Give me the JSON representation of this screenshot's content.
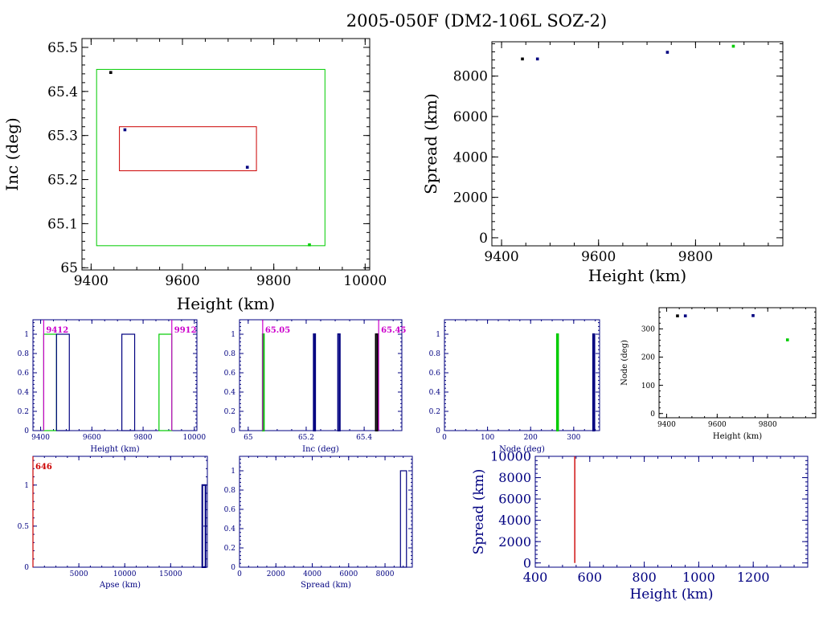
{
  "page": {
    "title": "2005-050F (DM2-106L SOZ-2)"
  },
  "chart_data": [
    {
      "id": "inc-vs-height",
      "type": "scatter",
      "xlabel": "Height (km)",
      "ylabel": "Inc (deg)",
      "xlim": [
        9380,
        10010
      ],
      "ylim": [
        64.995,
        65.52
      ],
      "xticks": [
        9400,
        9600,
        9800,
        10000
      ],
      "yticks": [
        65,
        65.1,
        65.2,
        65.3,
        65.4,
        65.5
      ],
      "rects": [
        {
          "x0": 9412,
          "x1": 9912,
          "y0": 65.05,
          "y1": 65.45,
          "color": "#00cc00"
        },
        {
          "x0": 9462,
          "x1": 9762,
          "y0": 65.22,
          "y1": 65.32,
          "color": "#cc0000"
        }
      ],
      "points": [
        {
          "x": 9443,
          "y": 65.443,
          "color": "#000000"
        },
        {
          "x": 9474,
          "y": 65.313,
          "color": "#000080"
        },
        {
          "x": 9742,
          "y": 65.228,
          "color": "#000080"
        },
        {
          "x": 9878,
          "y": 65.052,
          "color": "#00cc00"
        }
      ]
    },
    {
      "id": "spread-vs-height",
      "type": "scatter",
      "xlabel": "Height (km)",
      "ylabel": "Spread (km)",
      "xlim": [
        9380,
        9980
      ],
      "ylim": [
        -400,
        9700
      ],
      "xticks": [
        9400,
        9600,
        9800
      ],
      "yticks": [
        0,
        2000,
        4000,
        6000,
        8000
      ],
      "points": [
        {
          "x": 9443,
          "y": 8850,
          "color": "#000000"
        },
        {
          "x": 9474,
          "y": 8850,
          "color": "#000080"
        },
        {
          "x": 9742,
          "y": 9180,
          "color": "#000080"
        },
        {
          "x": 9878,
          "y": 9480,
          "color": "#00cc00"
        }
      ]
    },
    {
      "id": "hist-height",
      "type": "bar",
      "xlabel": "Height (km)",
      "ylabel": "",
      "xlim": [
        9370,
        10010
      ],
      "ylim": [
        0,
        1.15
      ],
      "xticks": [
        9400,
        9600,
        9800,
        10000
      ],
      "yticks": [
        0,
        0.2,
        0.4,
        0.6,
        0.8,
        1
      ],
      "bins": [
        {
          "x0": 9412,
          "x1": 9462,
          "value": 1,
          "color": "#00cc00"
        },
        {
          "x0": 9462,
          "x1": 9512,
          "value": 1,
          "color": "#000080"
        },
        {
          "x0": 9717,
          "x1": 9767,
          "value": 1,
          "color": "#000080"
        },
        {
          "x0": 9862,
          "x1": 9912,
          "value": 1,
          "color": "#00cc00"
        }
      ],
      "markers": [
        {
          "x": 9412,
          "label": "9412",
          "color": "#cc00cc",
          "side": "right"
        },
        {
          "x": 9912,
          "label": "9912",
          "color": "#cc00cc",
          "side": "right"
        }
      ]
    },
    {
      "id": "hist-inc",
      "type": "bar",
      "xlabel": "Inc (deg)",
      "ylabel": "",
      "xlim": [
        64.97,
        65.53
      ],
      "ylim": [
        0,
        1.15
      ],
      "xticks": [
        65,
        65.2,
        65.4
      ],
      "yticks": [
        0,
        0.2,
        0.4,
        0.6,
        0.8,
        1
      ],
      "bins": [
        {
          "x0": 65.05,
          "x1": 65.054,
          "value": 1,
          "color": "#00cc00"
        },
        {
          "x0": 65.226,
          "x1": 65.231,
          "value": 1,
          "color": "#000080"
        },
        {
          "x0": 65.31,
          "x1": 65.316,
          "value": 1,
          "color": "#000080"
        },
        {
          "x0": 65.44,
          "x1": 65.446,
          "value": 1,
          "color": "#000000"
        }
      ],
      "markers": [
        {
          "x": 65.05,
          "label": "65.05",
          "color": "#cc00cc",
          "side": "right"
        },
        {
          "x": 65.45,
          "label": "65.45",
          "color": "#cc00cc",
          "side": "right"
        }
      ]
    },
    {
      "id": "hist-node",
      "type": "bar",
      "xlabel": "Node (deg)",
      "ylabel": "",
      "xlim": [
        0,
        360
      ],
      "ylim": [
        0,
        1.15
      ],
      "xticks": [
        0,
        100,
        200,
        300
      ],
      "yticks": [
        0,
        0.2,
        0.4,
        0.6,
        0.8,
        1
      ],
      "bins": [
        {
          "x0": 261,
          "x1": 262,
          "value": 1,
          "color": "#00cc00"
        },
        {
          "x0": 345,
          "x1": 348,
          "value": 1,
          "color": "#000080"
        }
      ]
    },
    {
      "id": "node-vs-height",
      "type": "scatter",
      "xlabel": "Height (km)",
      "ylabel": "Node (deg)",
      "xlim": [
        9370,
        9990
      ],
      "ylim": [
        -15,
        375
      ],
      "xticks": [
        9400,
        9600,
        9800
      ],
      "yticks": [
        0,
        100,
        200,
        300
      ],
      "points": [
        {
          "x": 9443,
          "y": 346,
          "color": "#000000"
        },
        {
          "x": 9474,
          "y": 346,
          "color": "#000080"
        },
        {
          "x": 9742,
          "y": 347,
          "color": "#000080"
        },
        {
          "x": 9878,
          "y": 261,
          "color": "#00cc00"
        }
      ]
    },
    {
      "id": "hist-apse",
      "type": "bar",
      "xlabel": "Apse (km)",
      "ylabel": "",
      "xlim": [
        0,
        19000
      ],
      "ylim": [
        0,
        1.35
      ],
      "xticks": [
        5000,
        10000,
        15000
      ],
      "yticks": [
        0,
        0.5,
        1
      ],
      "bins": [
        {
          "x0": 18450,
          "x1": 18800,
          "value": 1,
          "color": "#000080"
        }
      ],
      "markers": [
        {
          "x": 0,
          "label": "646",
          "color": "#cc0000",
          "side": "right"
        }
      ]
    },
    {
      "id": "hist-spread",
      "type": "bar",
      "xlabel": "Spread (km)",
      "ylabel": "",
      "xlim": [
        0,
        9500
      ],
      "ylim": [
        0,
        1.15
      ],
      "xticks": [
        0,
        2000,
        4000,
        6000,
        8000
      ],
      "yticks": [
        0,
        0.2,
        0.4,
        0.6,
        0.8,
        1
      ],
      "bins": [
        {
          "x0": 8850,
          "x1": 9180,
          "value": 1,
          "color": "#000080"
        }
      ]
    },
    {
      "id": "spread-vs-height-low",
      "type": "line",
      "xlabel": "Height (km)",
      "ylabel": "Spread (km)",
      "xlim": [
        400,
        1400
      ],
      "ylim": [
        -400,
        10000
      ],
      "xticks": [
        400,
        600,
        800,
        1000,
        1200
      ],
      "yticks": [
        0,
        2000,
        4000,
        6000,
        8000,
        10000
      ],
      "lines": [
        {
          "x": [
            545,
            545
          ],
          "y": [
            0,
            10000
          ],
          "color": "#cc0000"
        }
      ]
    }
  ]
}
